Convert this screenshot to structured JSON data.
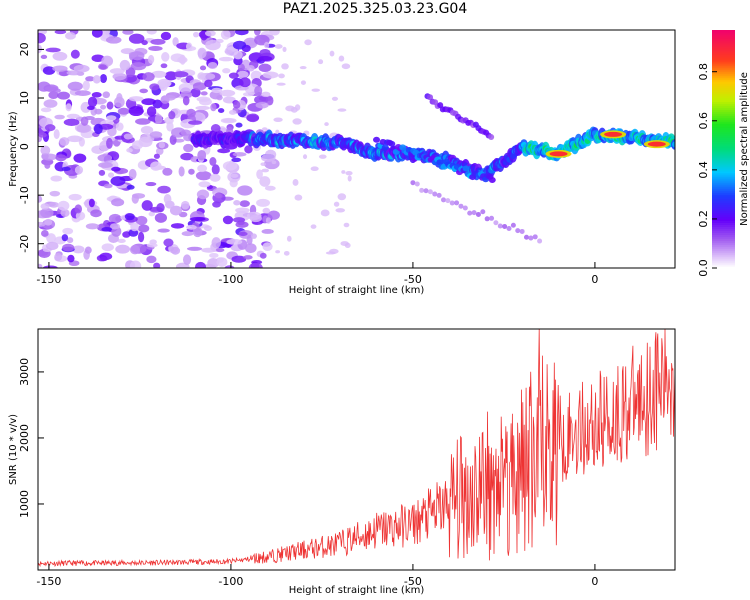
{
  "title": "PAZ1.2025.325.03.23.G04",
  "chart_data": [
    {
      "type": "heatmap",
      "xlabel": "Height of straight line (km)",
      "ylabel": "Frequency (Hz)",
      "xlim": [
        -153,
        22
      ],
      "ylim": [
        -25,
        24
      ],
      "xticks": [
        -150,
        -100,
        -50,
        0
      ],
      "yticks": [
        -20,
        -10,
        0,
        10,
        20
      ],
      "colorbar": {
        "label": "Normalized spectral amplitude",
        "range": [
          0,
          0.97
        ],
        "ticks": [
          0.0,
          0.2,
          0.4,
          0.6,
          0.8
        ],
        "tick_labels": [
          "0.0",
          "0.2",
          "0.4",
          "0.6",
          "0.8"
        ]
      },
      "ridge": {
        "description_points_km_hz": [
          [
            -110,
            1.5
          ],
          [
            -90,
            1.5
          ],
          [
            -80,
            1.2
          ],
          [
            -70,
            0.8
          ],
          [
            -60,
            -1.5
          ],
          [
            -50,
            -1.5
          ],
          [
            -40,
            -3
          ],
          [
            -30,
            -6
          ],
          [
            -20,
            0
          ],
          [
            -10,
            -1.5
          ],
          [
            0,
            2.5
          ],
          [
            10,
            2
          ],
          [
            20,
            1
          ]
        ],
        "peak_amplitude_points_km_hz": [
          [
            -10,
            -1.5
          ],
          [
            5,
            2.5
          ],
          [
            17,
            0.5
          ]
        ]
      }
    },
    {
      "type": "line",
      "xlabel": "Height of straight line (km)",
      "ylabel": "SNR (10 * v/v)",
      "xlim": [
        -153,
        22
      ],
      "ylim": [
        0,
        3650
      ],
      "xticks": [
        -150,
        -100,
        -50,
        0
      ],
      "yticks": [
        1000,
        2000,
        3000
      ],
      "color": "#ee3333",
      "envelope_km_snr": [
        [
          -153,
          100
        ],
        [
          -120,
          110
        ],
        [
          -100,
          130
        ],
        [
          -90,
          200
        ],
        [
          -80,
          300
        ],
        [
          -70,
          400
        ],
        [
          -60,
          600
        ],
        [
          -50,
          700
        ],
        [
          -40,
          1000
        ],
        [
          -30,
          1300
        ],
        [
          -20,
          1500
        ],
        [
          -10,
          2000
        ],
        [
          0,
          2200
        ],
        [
          10,
          2500
        ],
        [
          22,
          2950
        ]
      ]
    }
  ]
}
